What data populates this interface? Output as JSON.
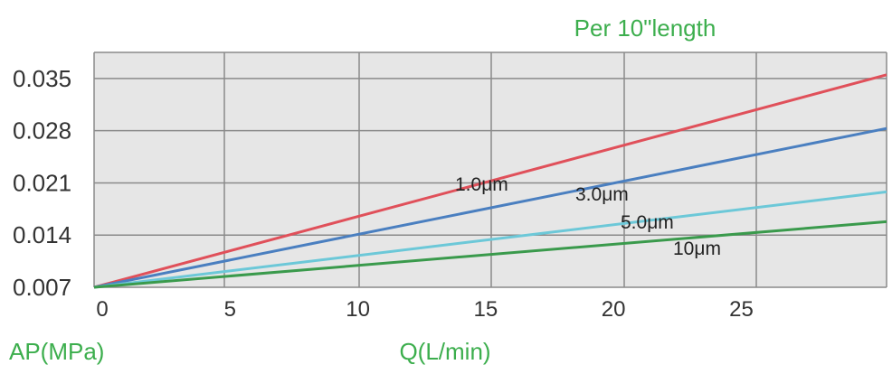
{
  "chart_data": {
    "type": "line",
    "title": "Per 10\"length",
    "xlabel": "Q(L/min)",
    "ylabel": "AP(MPa)",
    "x_ticks": [
      "0",
      "5",
      "10",
      "15",
      "20",
      "25"
    ],
    "y_ticks": [
      "0.007",
      "0.014",
      "0.021",
      "0.028",
      "0.035"
    ],
    "xlim": [
      0,
      31
    ],
    "ylim": [
      0.007,
      0.0385
    ],
    "grid": true,
    "legend": "inline",
    "series": [
      {
        "name": "1.0μm",
        "color": "#e0505a",
        "x": [
          0,
          31
        ],
        "y": [
          0.007,
          0.0355
        ]
      },
      {
        "name": "3.0μm",
        "color": "#4a7fc0",
        "x": [
          0,
          31
        ],
        "y": [
          0.007,
          0.0283
        ]
      },
      {
        "name": "5.0μm",
        "color": "#6cc8d8",
        "x": [
          0,
          31
        ],
        "y": [
          0.007,
          0.0198
        ]
      },
      {
        "name": "10μm",
        "color": "#3a9a4c",
        "x": [
          0,
          31
        ],
        "y": [
          0.007,
          0.0158
        ]
      }
    ]
  },
  "colors": {
    "plot_bg": "#e6e6e6",
    "grid": "#8a8a8a",
    "label_green": "#3cae4d"
  }
}
